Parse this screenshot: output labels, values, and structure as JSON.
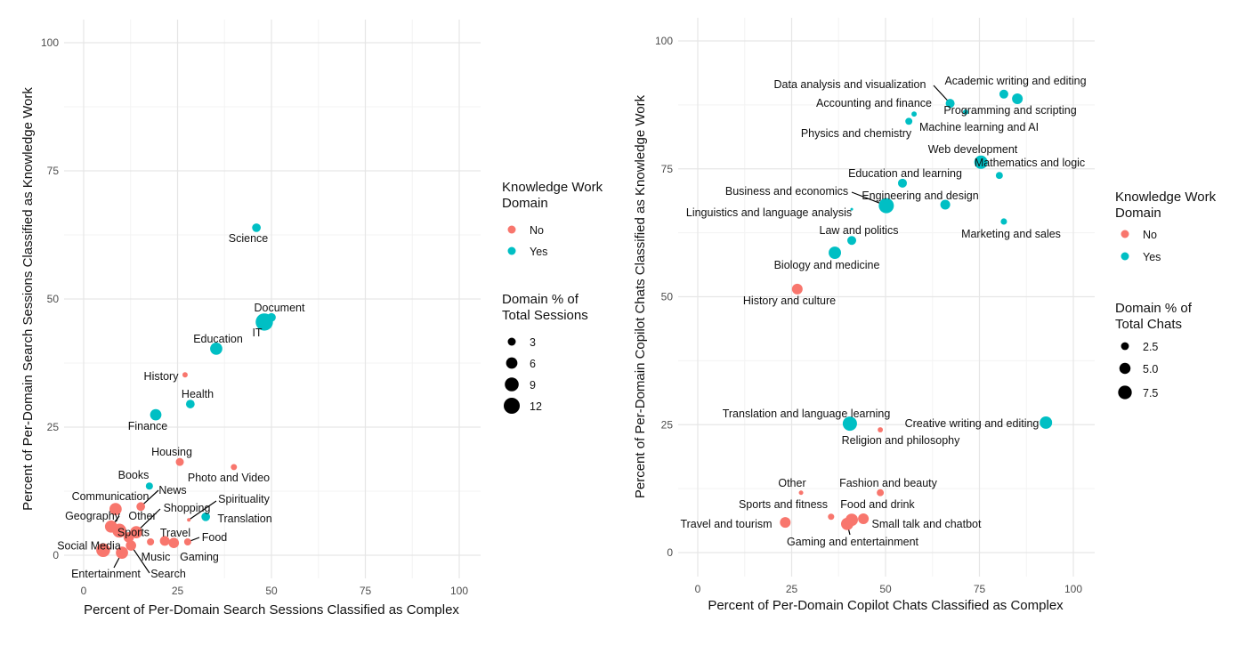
{
  "colors": {
    "No": "#F8766D",
    "Yes": "#00BFC4"
  },
  "chart_data": [
    {
      "type": "scatter",
      "xlabel": "Percent of Per-Domain Search Sessions Classified as Complex",
      "ylabel": "Percent of Per-Domain Search Sessions Classified as Knowledge Work",
      "xlim": [
        0,
        100
      ],
      "ylim": [
        0,
        100
      ],
      "xticks": [
        "0",
        "25",
        "50",
        "75",
        "100"
      ],
      "yticks": [
        "0",
        "25",
        "50",
        "75",
        "100"
      ],
      "grid": true,
      "legend_color": {
        "title": "Knowledge Work Domain",
        "items": [
          "No",
          "Yes"
        ]
      },
      "legend_size": {
        "title": "Domain % of Total Sessions",
        "items": [
          "3",
          "6",
          "9",
          "12"
        ]
      },
      "legend_position": "right",
      "points": [
        {
          "label": "Science",
          "x": 46.0,
          "y": 63.9,
          "size": 3.5,
          "knowledge": "Yes"
        },
        {
          "label": "Document",
          "x": 50.0,
          "y": 46.4,
          "size": 3.5,
          "knowledge": "Yes"
        },
        {
          "label": "IT",
          "x": 48.1,
          "y": 45.5,
          "size": 14,
          "knowledge": "Yes"
        },
        {
          "label": "Education",
          "x": 35.3,
          "y": 40.3,
          "size": 7,
          "knowledge": "Yes"
        },
        {
          "label": "History",
          "x": 27.0,
          "y": 35.2,
          "size": 1.3,
          "knowledge": "No"
        },
        {
          "label": "Health",
          "x": 28.4,
          "y": 29.5,
          "size": 3.5,
          "knowledge": "Yes"
        },
        {
          "label": "Finance",
          "x": 19.2,
          "y": 27.4,
          "size": 6,
          "knowledge": "Yes"
        },
        {
          "label": "Housing",
          "x": 25.6,
          "y": 18.2,
          "size": 3,
          "knowledge": "No"
        },
        {
          "label": "Photo and Video",
          "x": 40.0,
          "y": 17.2,
          "size": 1.8,
          "knowledge": "No"
        },
        {
          "label": "Books",
          "x": 17.5,
          "y": 13.5,
          "size": 2.4,
          "knowledge": "Yes"
        },
        {
          "label": "News",
          "x": 15.2,
          "y": 9.5,
          "size": 3.5,
          "knowledge": "No"
        },
        {
          "label": "Communication",
          "x": 8.5,
          "y": 9.0,
          "size": 7,
          "knowledge": "No"
        },
        {
          "label": "Geography",
          "x": 7.3,
          "y": 5.6,
          "size": 7,
          "knowledge": "No"
        },
        {
          "label": "Other",
          "x": 9.5,
          "y": 4.8,
          "size": 9,
          "knowledge": "No"
        },
        {
          "label": "Shopping",
          "x": 14.0,
          "y": 4.5,
          "size": 7,
          "knowledge": "No"
        },
        {
          "label": "Sports",
          "x": 12.0,
          "y": 3.5,
          "size": 5,
          "knowledge": "No"
        },
        {
          "label": "Social Media",
          "x": 5.2,
          "y": 1.0,
          "size": 9,
          "knowledge": "No"
        },
        {
          "label": "Entertainment",
          "x": 10.2,
          "y": 0.5,
          "size": 7,
          "knowledge": "No"
        },
        {
          "label": "Search",
          "x": 12.6,
          "y": 1.9,
          "size": 5,
          "knowledge": "No"
        },
        {
          "label": "Music",
          "x": 17.8,
          "y": 2.6,
          "size": 2.4,
          "knowledge": "No"
        },
        {
          "label": "Travel",
          "x": 21.6,
          "y": 2.8,
          "size": 4.5,
          "knowledge": "No"
        },
        {
          "label": "Gaming",
          "x": 24.0,
          "y": 2.4,
          "size": 5,
          "knowledge": "No"
        },
        {
          "label": "Food",
          "x": 27.7,
          "y": 2.6,
          "size": 2.4,
          "knowledge": "No"
        },
        {
          "label": "Spirituality",
          "x": 28.0,
          "y": 6.9,
          "size": 0.6,
          "knowledge": "No"
        },
        {
          "label": "Translation",
          "x": 32.5,
          "y": 7.5,
          "size": 3.5,
          "knowledge": "Yes"
        }
      ]
    },
    {
      "type": "scatter",
      "xlabel": "Percent of Per-Domain Copilot Chats Classified as Complex",
      "ylabel": "Percent of Per-Domain Copilot Chats Classified as Knowledge Work",
      "xlim": [
        0,
        100
      ],
      "ylim": [
        0,
        100
      ],
      "xticks": [
        "0",
        "25",
        "50",
        "75",
        "100"
      ],
      "yticks": [
        "0",
        "25",
        "50",
        "75",
        "100"
      ],
      "grid": true,
      "legend_color": {
        "title": "Knowledge Work Domain",
        "items": [
          "No",
          "Yes"
        ]
      },
      "legend_size": {
        "title": "Domain % of Total Chats",
        "items": [
          "2.5",
          "5.0",
          "7.5"
        ]
      },
      "legend_position": "right",
      "points": [
        {
          "label": "Data analysis and visualization",
          "x": 67.2,
          "y": 87.8,
          "size": 3.2,
          "knowledge": "Yes"
        },
        {
          "label": "Academic writing and editing",
          "x": 81.5,
          "y": 89.6,
          "size": 3.2,
          "knowledge": "Yes"
        },
        {
          "label": "Programming and scripting",
          "x": 85.1,
          "y": 88.7,
          "size": 4.6,
          "knowledge": "Yes"
        },
        {
          "label": "Machine learning and AI",
          "x": 71.3,
          "y": 86.1,
          "size": 1.1,
          "knowledge": "Yes"
        },
        {
          "label": "Accounting and finance",
          "x": 57.6,
          "y": 85.7,
          "size": 1.1,
          "knowledge": "Yes"
        },
        {
          "label": "Physics and chemistry",
          "x": 56.2,
          "y": 84.3,
          "size": 2.0,
          "knowledge": "Yes"
        },
        {
          "label": "Web development",
          "x": 75.4,
          "y": 76.3,
          "size": 7.2,
          "knowledge": "Yes"
        },
        {
          "label": "Mathematics and logic",
          "x": 80.3,
          "y": 73.7,
          "size": 2.0,
          "knowledge": "Yes"
        },
        {
          "label": "Education and learning",
          "x": 54.5,
          "y": 72.2,
          "size": 3.2,
          "knowledge": "Yes"
        },
        {
          "label": "Business and economics",
          "x": 50.2,
          "y": 67.8,
          "size": 9.2,
          "knowledge": "Yes"
        },
        {
          "label": "Engineering and design",
          "x": 65.9,
          "y": 68.0,
          "size": 3.9,
          "knowledge": "Yes"
        },
        {
          "label": "Linguistics and language analysis",
          "x": 41.0,
          "y": 67.1,
          "size": 0.3,
          "knowledge": "Yes"
        },
        {
          "label": "Marketing and sales",
          "x": 81.5,
          "y": 64.7,
          "size": 1.6,
          "knowledge": "Yes"
        },
        {
          "label": "Law and politics",
          "x": 41.0,
          "y": 61.0,
          "size": 3.2,
          "knowledge": "Yes"
        },
        {
          "label": "Biology and medicine",
          "x": 36.5,
          "y": 58.6,
          "size": 6.2,
          "knowledge": "Yes"
        },
        {
          "label": "History and culture",
          "x": 26.5,
          "y": 51.5,
          "size": 4.6,
          "knowledge": "No"
        },
        {
          "label": "Translation and language learning",
          "x": 40.5,
          "y": 25.2,
          "size": 8.2,
          "knowledge": "Yes"
        },
        {
          "label": "Creative writing and editing",
          "x": 92.7,
          "y": 25.4,
          "size": 6.2,
          "knowledge": "Yes"
        },
        {
          "label": "Religion and philosophy",
          "x": 48.6,
          "y": 24.0,
          "size": 1.1,
          "knowledge": "No"
        },
        {
          "label": "Other",
          "x": 27.5,
          "y": 11.7,
          "size": 0.8,
          "knowledge": "No"
        },
        {
          "label": "Fashion and beauty",
          "x": 48.6,
          "y": 11.7,
          "size": 2.0,
          "knowledge": "No"
        },
        {
          "label": "Sports and fitness",
          "x": 35.5,
          "y": 7.0,
          "size": 1.6,
          "knowledge": "No"
        },
        {
          "label": "Food and drink",
          "x": 41.0,
          "y": 6.4,
          "size": 6.2,
          "knowledge": "No"
        },
        {
          "label": "Gaming and entertainment",
          "x": 39.8,
          "y": 5.6,
          "size": 6.2,
          "knowledge": "No"
        },
        {
          "label": "Small talk and chatbot",
          "x": 44.1,
          "y": 6.6,
          "size": 4.6,
          "knowledge": "No"
        },
        {
          "label": "Travel and tourism",
          "x": 23.3,
          "y": 5.9,
          "size": 4.6,
          "knowledge": "No"
        }
      ]
    }
  ]
}
